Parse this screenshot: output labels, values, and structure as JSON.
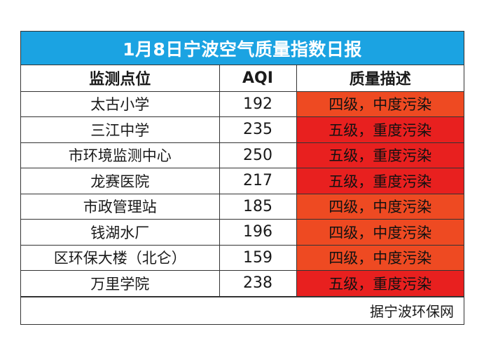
{
  "title": "1月8日宁波空气质量指数日报",
  "headers": {
    "site": "监测点位",
    "aqi": "AQI",
    "desc": "质量描述"
  },
  "rows": [
    {
      "site": "太古小学",
      "aqi": "192",
      "desc": "四级，中度污染",
      "level": "moderate"
    },
    {
      "site": "三江中学",
      "aqi": "235",
      "desc": "五级，重度污染",
      "level": "heavy"
    },
    {
      "site": "市环境监测中心",
      "aqi": "250",
      "desc": "五级，重度污染",
      "level": "heavy"
    },
    {
      "site": "龙赛医院",
      "aqi": "217",
      "desc": "五级，重度污染",
      "level": "heavy"
    },
    {
      "site": "市政管理站",
      "aqi": "185",
      "desc": "四级，中度污染",
      "level": "moderate"
    },
    {
      "site": "钱湖水厂",
      "aqi": "196",
      "desc": "四级，中度污染",
      "level": "moderate"
    },
    {
      "site": "区环保大楼（北仑）",
      "aqi": "159",
      "desc": "四级，中度污染",
      "level": "moderate"
    },
    {
      "site": "万里学院",
      "aqi": "238",
      "desc": "五级，重度污染",
      "level": "heavy"
    }
  ],
  "source": "据宁波环保网",
  "colors": {
    "title_bg": "#1ba3e2",
    "moderate": "#ee4a22",
    "heavy": "#e8201f"
  }
}
